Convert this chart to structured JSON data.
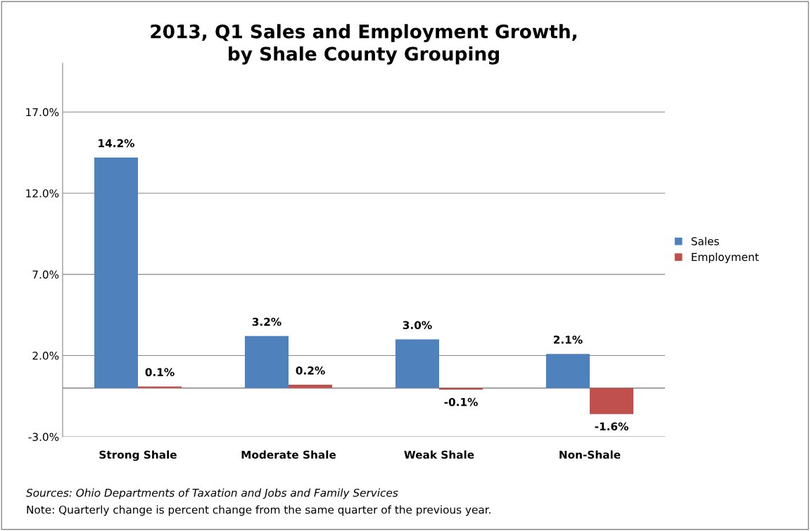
{
  "chart_data": {
    "type": "bar",
    "title": "2013, Q1 Sales and Employment Growth,\nby Shale County Grouping",
    "categories": [
      "Strong Shale",
      "Moderate Shale",
      "Weak Shale",
      "Non-Shale"
    ],
    "series": [
      {
        "name": "Sales",
        "color": "#4f81bd",
        "values": [
          14.2,
          3.2,
          3.0,
          2.1
        ],
        "value_labels": [
          "14.2%",
          "3.2%",
          "3.0%",
          "2.1%"
        ]
      },
      {
        "name": "Employment",
        "color": "#c0504d",
        "values": [
          0.1,
          0.2,
          -0.1,
          -1.6
        ],
        "value_labels": [
          "0.1%",
          "0.2%",
          "-0.1%",
          "-1.6%"
        ]
      }
    ],
    "ylim": [
      -3,
      20
    ],
    "yticks": [
      {
        "value": -3,
        "label": "-3.0%"
      },
      {
        "value": 2,
        "label": "2.0%"
      },
      {
        "value": 7,
        "label": "7.0%"
      },
      {
        "value": 12,
        "label": "12.0%"
      },
      {
        "value": 17,
        "label": "17.0%"
      }
    ],
    "grid": "y",
    "legend": "right",
    "annotations": [
      "Sources: Ohio Departments of Taxation and Jobs and Family Services",
      "Note: Quarterly change is percent change from the same quarter of the previous year."
    ]
  }
}
